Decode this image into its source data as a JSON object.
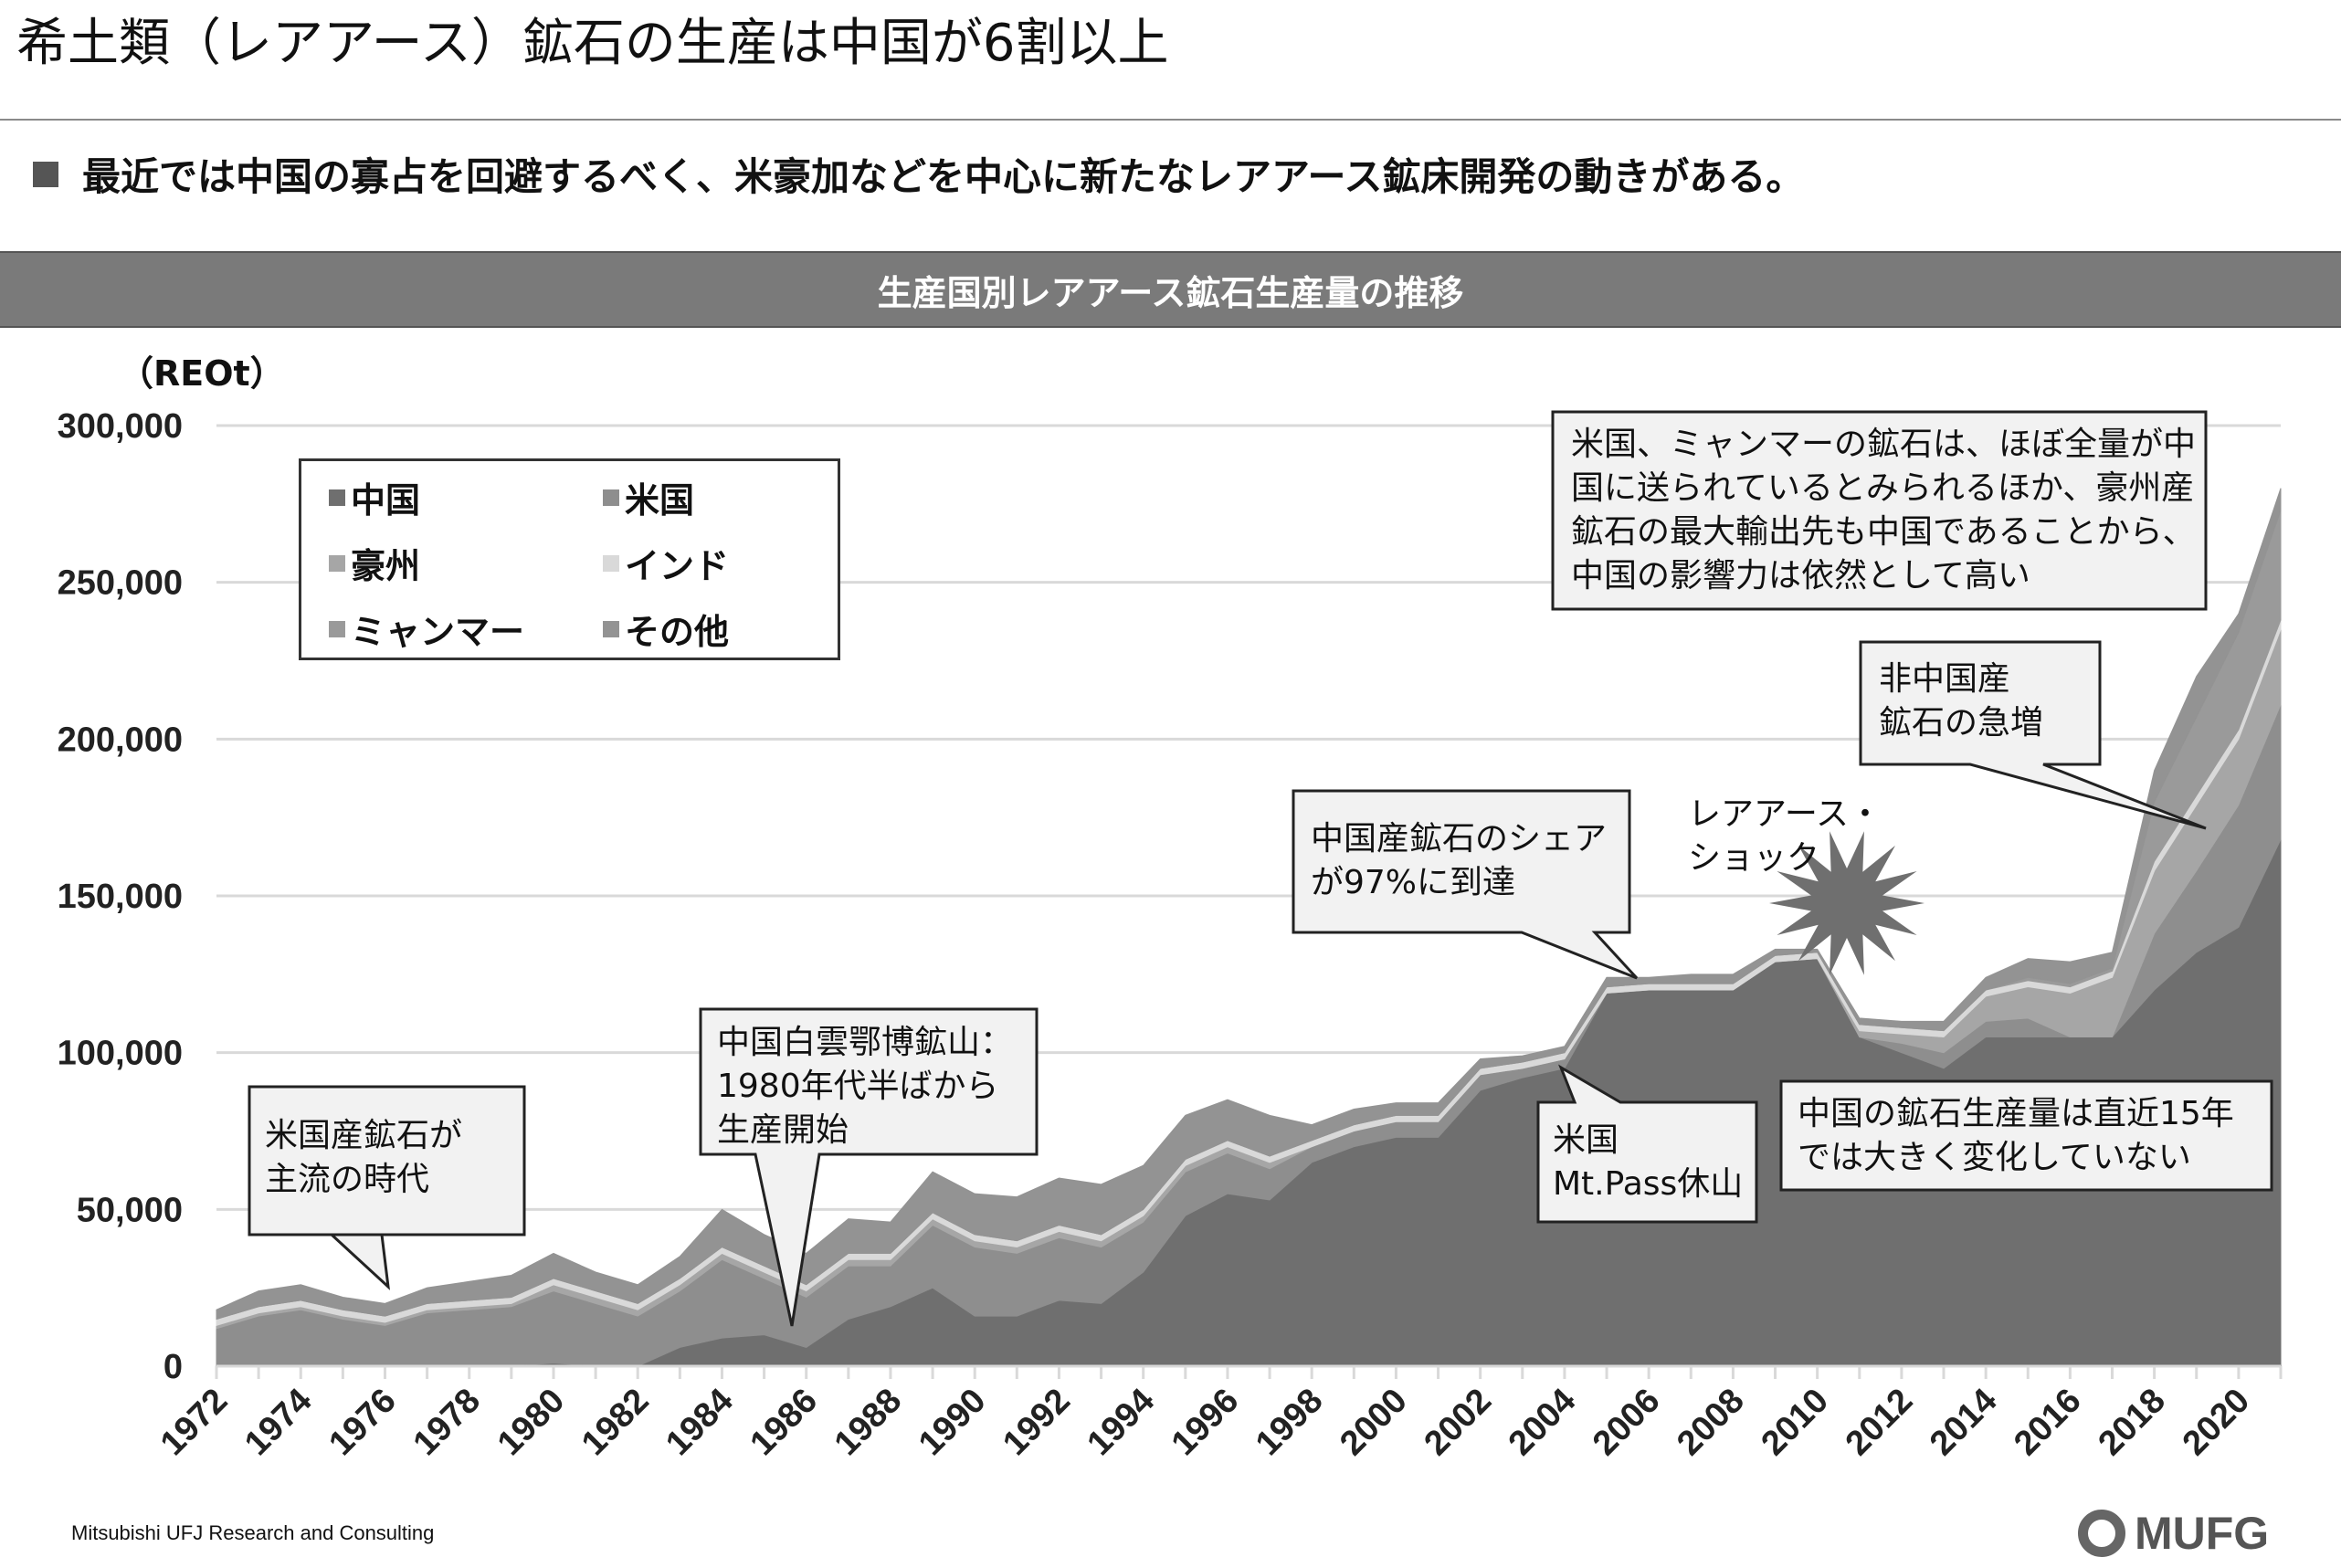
{
  "header": {
    "title": "希土類（レアアース）鉱石の生産は中国が6割以上",
    "subtitle": "最近では中国の寡占を回避するべく、米豪加などを中心に新たなレアアース鉱床開発の動きがある。"
  },
  "chart_data": {
    "type": "area",
    "stacked": true,
    "title": "生産国別レアアース鉱石生産量の推移",
    "ylabel": "（REOt）",
    "ylim": [
      0,
      300000
    ],
    "yticks": [
      "0",
      "50,000",
      "100,000",
      "150,000",
      "200,000",
      "250,000",
      "300,000"
    ],
    "xticks": [
      "1972",
      "1974",
      "1976",
      "1978",
      "1980",
      "1982",
      "1984",
      "1986",
      "1988",
      "1990",
      "1992",
      "1994",
      "1996",
      "1998",
      "2000",
      "2002",
      "2004",
      "2006",
      "2008",
      "2010",
      "2012",
      "2014",
      "2016",
      "2018",
      "2020"
    ],
    "grid": true,
    "legend_placement": "top-left",
    "x": [
      1972,
      1973,
      1974,
      1975,
      1976,
      1977,
      1978,
      1979,
      1980,
      1981,
      1982,
      1983,
      1984,
      1985,
      1986,
      1987,
      1988,
      1989,
      1990,
      1991,
      1992,
      1993,
      1994,
      1995,
      1996,
      1997,
      1998,
      1999,
      2000,
      2001,
      2002,
      2003,
      2004,
      2005,
      2006,
      2007,
      2008,
      2009,
      2010,
      2011,
      2012,
      2013,
      2014,
      2015,
      2016,
      2017,
      2018,
      2019,
      2020,
      2021
    ],
    "series": [
      {
        "name": "中国",
        "color": "#6f6f6f",
        "values": [
          0,
          0,
          0,
          0,
          0,
          0,
          0,
          0,
          1000,
          0,
          0,
          6000,
          9000,
          10000,
          6000,
          15000,
          19000,
          25000,
          16000,
          16000,
          21000,
          20000,
          30000,
          48000,
          55000,
          53000,
          65000,
          70000,
          73000,
          73000,
          88000,
          92000,
          95000,
          119000,
          120000,
          120000,
          120000,
          129000,
          130000,
          105000,
          100000,
          95000,
          105000,
          105000,
          105000,
          105000,
          120000,
          132000,
          140000,
          168000
        ]
      },
      {
        "name": "米国",
        "color": "#8e8e8e",
        "values": [
          12000,
          16000,
          18000,
          15000,
          13000,
          17000,
          18000,
          19000,
          23000,
          20000,
          16000,
          18000,
          25000,
          18000,
          16000,
          17000,
          13000,
          20000,
          22000,
          20000,
          20000,
          18000,
          16000,
          14000,
          13000,
          10000,
          5000,
          5000,
          5000,
          5000,
          5000,
          3000,
          3000,
          0,
          0,
          0,
          0,
          0,
          0,
          0,
          3000,
          5000,
          5000,
          6000,
          0,
          0,
          18000,
          26000,
          39000,
          43000
        ]
      },
      {
        "name": "豪州",
        "color": "#a6a6a6",
        "values": [
          1000,
          1000,
          1000,
          1000,
          1000,
          1000,
          1000,
          1000,
          2000,
          2000,
          2000,
          2000,
          2000,
          2000,
          2000,
          2000,
          2000,
          2000,
          2000,
          2000,
          2000,
          2000,
          2000,
          2000,
          2000,
          2000,
          0,
          0,
          0,
          0,
          0,
          0,
          0,
          0,
          0,
          0,
          0,
          0,
          0,
          2000,
          3000,
          5000,
          8000,
          10000,
          14000,
          19000,
          20000,
          21000,
          21000,
          24000
        ]
      },
      {
        "name": "インド",
        "color": "#d9d9d9",
        "values": [
          2000,
          2000,
          2000,
          2000,
          2000,
          2000,
          2000,
          2000,
          2000,
          2000,
          2000,
          2000,
          2000,
          2000,
          2000,
          2000,
          2000,
          2000,
          2000,
          2000,
          2000,
          2000,
          2000,
          2000,
          2000,
          2000,
          2000,
          2000,
          2000,
          2000,
          2000,
          2000,
          2000,
          2000,
          2000,
          2000,
          2000,
          2000,
          2000,
          2000,
          2000,
          2000,
          2000,
          2000,
          2000,
          2000,
          3000,
          3000,
          3000,
          3000
        ]
      },
      {
        "name": "ミャンマー",
        "color": "#9a9a9a",
        "values": [
          0,
          0,
          0,
          0,
          0,
          0,
          0,
          0,
          0,
          0,
          0,
          0,
          0,
          0,
          0,
          0,
          0,
          0,
          0,
          0,
          0,
          0,
          0,
          0,
          0,
          0,
          0,
          0,
          0,
          0,
          0,
          0,
          0,
          0,
          0,
          0,
          0,
          0,
          0,
          0,
          0,
          0,
          0,
          1000,
          1000,
          1000,
          19000,
          25000,
          31000,
          35000
        ]
      },
      {
        "name": "その他",
        "color": "#939393",
        "values": [
          3000,
          5000,
          5000,
          4000,
          4000,
          5000,
          6000,
          7000,
          8000,
          6000,
          6000,
          7000,
          12000,
          10000,
          10000,
          11000,
          10000,
          13000,
          13000,
          14000,
          15000,
          16000,
          14000,
          14000,
          13000,
          13000,
          5000,
          5000,
          4000,
          4000,
          3000,
          2000,
          2000,
          3000,
          2000,
          3000,
          3000,
          2000,
          1000,
          2000,
          2000,
          3000,
          4000,
          6000,
          7000,
          5000,
          10000,
          13000,
          6000,
          7000
        ]
      }
    ],
    "annotations": [
      {
        "text": "米国産鉱石が\n主流の時代"
      },
      {
        "text": "中国白雲鄂博鉱山：\n1980年代半ばから\n生産開始"
      },
      {
        "text": "中国産鉱石のシェア\nが97%に到達"
      },
      {
        "text": "レアアース・\nショック"
      },
      {
        "text": "米国、ミャンマーの鉱石は、ほぼ全量が中\n国に送られているとみられるほか、豪州産\n鉱石の最大輸出先も中国であることから、\n中国の影響力は依然として高い"
      },
      {
        "text": "非中国産\n鉱石の急増"
      },
      {
        "text": "米国\nMt.Pass休山"
      },
      {
        "text": "中国の鉱石生産量は直近15年\nでは大きく変化していない"
      }
    ]
  },
  "footer": {
    "company": "Mitsubishi UFJ Research and Consulting",
    "logo": "MUFG"
  }
}
